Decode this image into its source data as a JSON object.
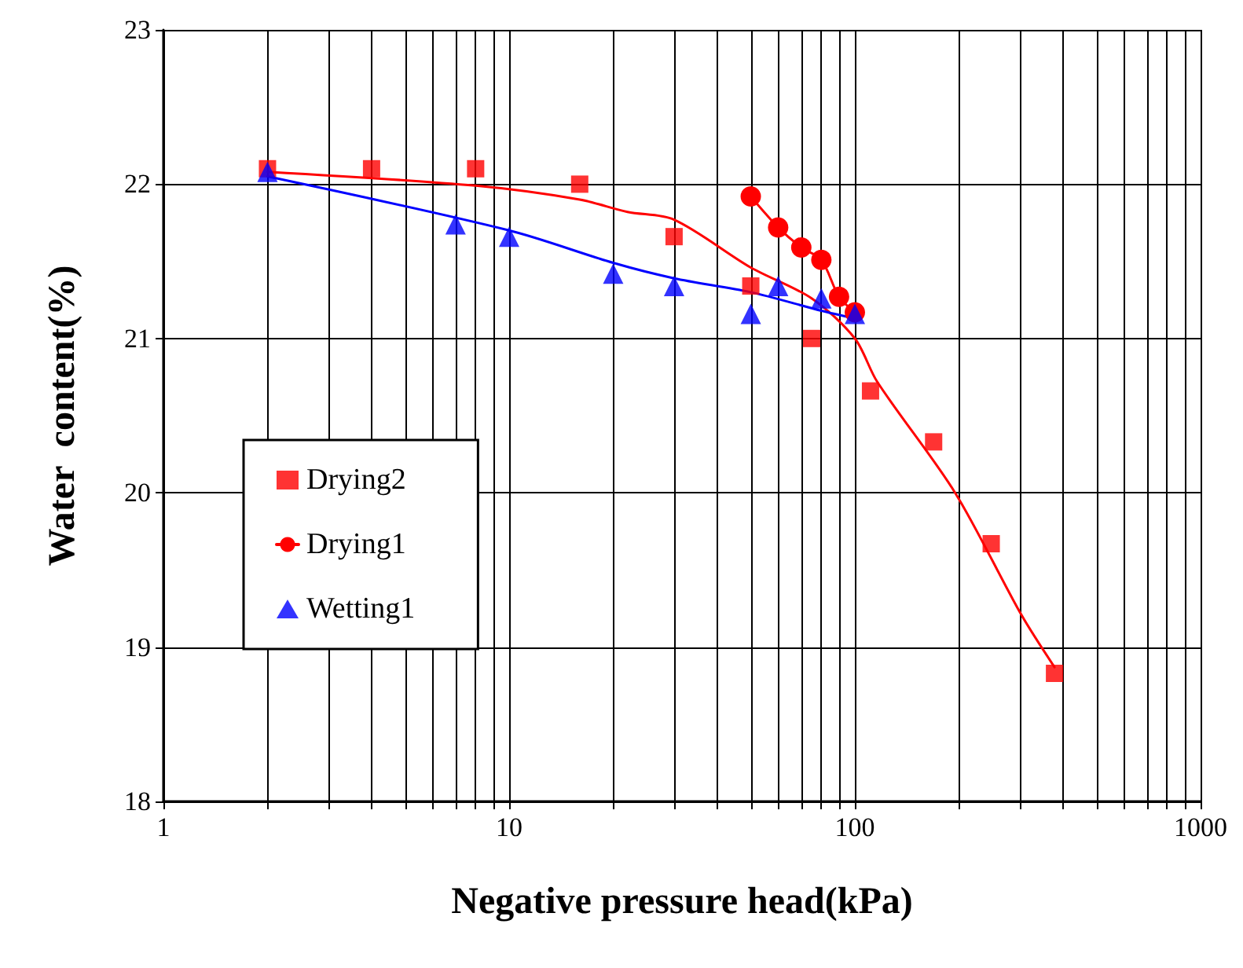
{
  "chart_data": {
    "type": "scatter",
    "xlabel": "Negative pressure head(kPa)",
    "ylabel": "Water  content(%)",
    "log": "x",
    "grid": true,
    "legend": "left",
    "xlim": [
      1,
      1000
    ],
    "xticks": [
      1,
      {
        "value": 2,
        "label": null
      },
      {
        "value": 3,
        "label": null
      },
      {
        "value": 4,
        "label": null
      },
      {
        "value": 5,
        "label": null
      },
      {
        "value": 6,
        "label": null
      },
      {
        "value": 7,
        "label": null
      },
      {
        "value": 8,
        "label": null
      },
      {
        "value": 9,
        "label": null
      },
      10,
      {
        "value": 20,
        "label": null
      },
      {
        "value": 30,
        "label": null
      },
      {
        "value": 40,
        "label": null
      },
      {
        "value": 50,
        "label": null
      },
      {
        "value": 60,
        "label": null
      },
      {
        "value": 70,
        "label": null
      },
      {
        "value": 80,
        "label": null
      },
      {
        "value": 90,
        "label": null
      },
      100,
      {
        "value": 200,
        "label": null
      },
      {
        "value": 300,
        "label": null
      },
      {
        "value": 400,
        "label": null
      },
      {
        "value": 500,
        "label": null
      },
      {
        "value": 600,
        "label": null
      },
      {
        "value": 700,
        "label": null
      },
      {
        "value": 800,
        "label": null
      },
      {
        "value": 900,
        "label": null
      },
      1000
    ],
    "ylim": [
      18,
      23
    ],
    "yticks": [
      18,
      19,
      20,
      21,
      22,
      23
    ],
    "series": [
      {
        "name": "Drying2",
        "marker": "square",
        "color": "#ff0000",
        "x": [
          2,
          4,
          8,
          16,
          30,
          50,
          75,
          111,
          169,
          248,
          378
        ],
        "values": [
          22.1,
          22.1,
          22.1,
          22.0,
          21.66,
          21.34,
          21.0,
          20.66,
          20.33,
          19.67,
          18.83
        ]
      },
      {
        "name": "Drying1",
        "type": "line",
        "marker": "circle",
        "line_style": "solid",
        "color": "#ff0000",
        "x": [
          50,
          60,
          70,
          80,
          90,
          100
        ],
        "values": [
          21.92,
          21.72,
          21.59,
          21.51,
          21.27,
          21.17
        ]
      },
      {
        "name": "Wetting1",
        "marker": "triangle",
        "color": "#0000ff",
        "x": [
          2,
          7,
          10,
          20,
          30,
          50,
          60,
          80,
          100
        ],
        "values": [
          22.08,
          21.74,
          21.66,
          21.42,
          21.34,
          21.16,
          21.34,
          21.26,
          21.16
        ]
      },
      {
        "type": "line",
        "marker": "none",
        "line_style": "solid",
        "color": "#ff0000",
        "x": [
          2,
          8,
          16,
          22,
          30,
          50,
          75,
          100,
          116,
          195,
          303,
          378
        ],
        "values": [
          22.08,
          21.99,
          21.9,
          21.82,
          21.77,
          21.46,
          21.26,
          21.0,
          20.72,
          20.0,
          19.21,
          18.87
        ]
      },
      {
        "type": "line",
        "marker": "none",
        "line_style": "solid",
        "color": "#0000ff",
        "x": [
          2,
          10,
          20,
          30,
          50,
          80,
          100
        ],
        "values": [
          22.05,
          21.7,
          21.49,
          21.39,
          21.3,
          21.18,
          21.13
        ]
      }
    ]
  }
}
